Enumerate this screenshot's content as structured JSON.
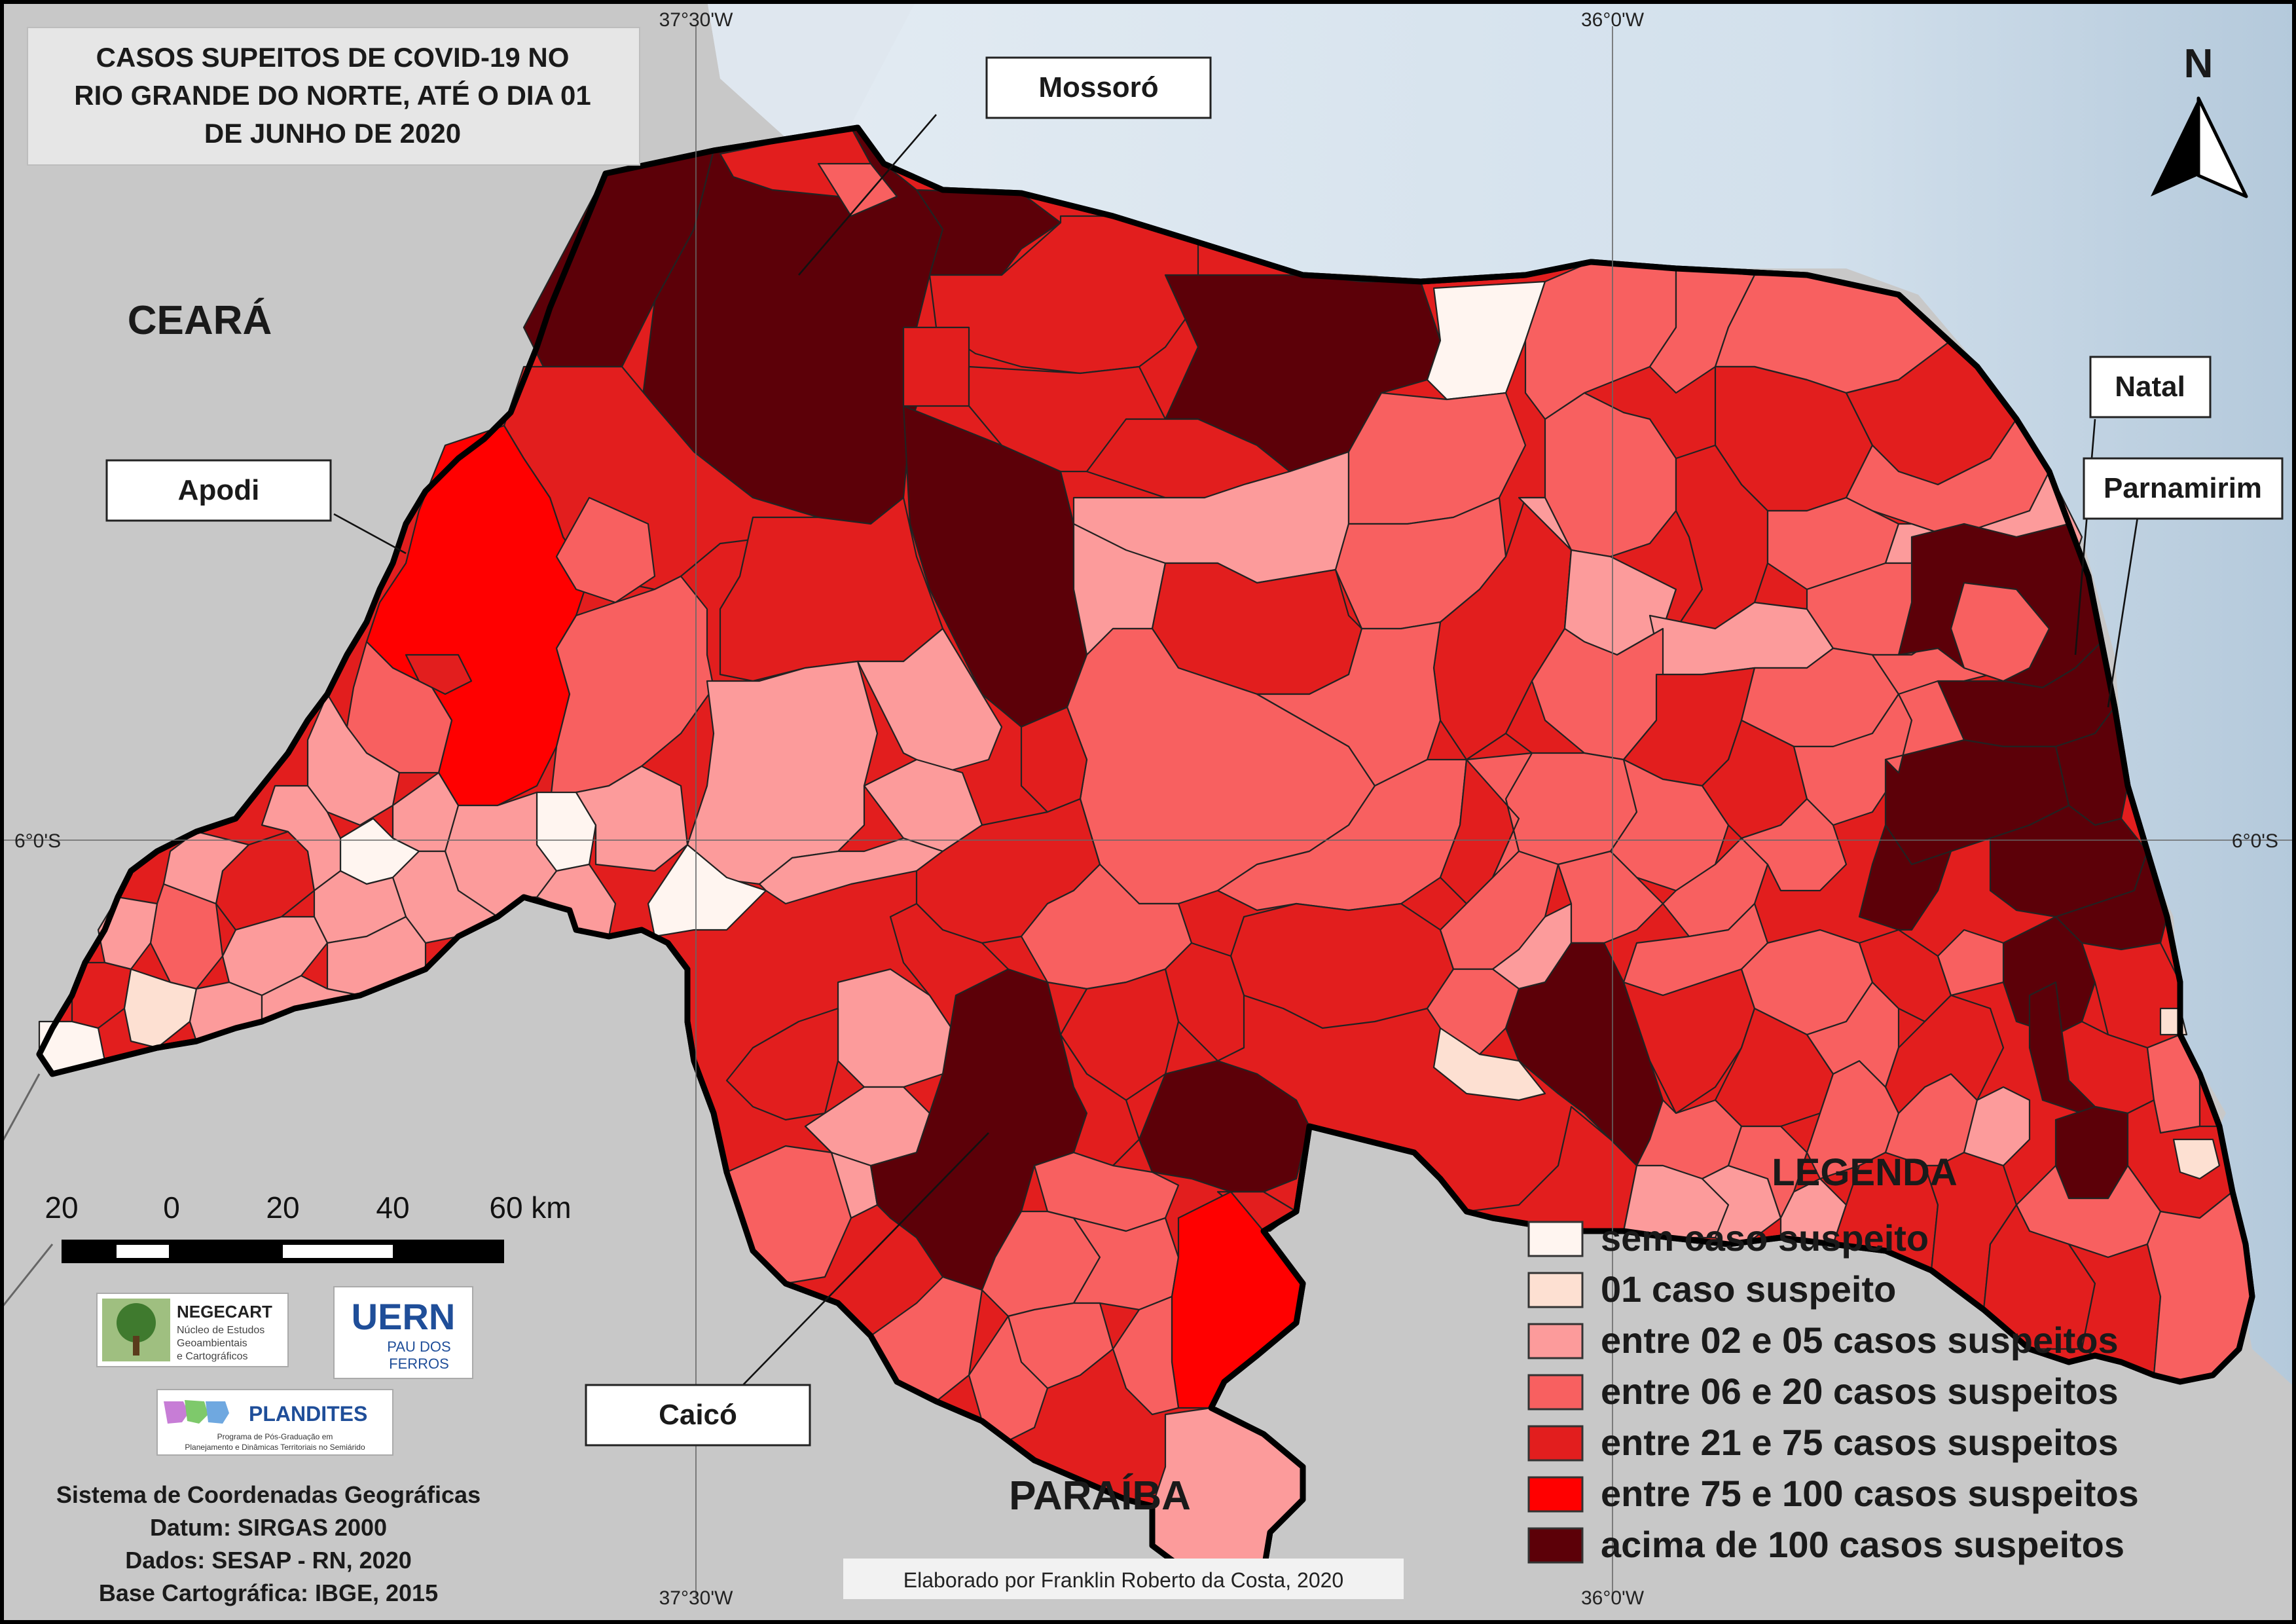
{
  "title_lines": [
    "CASOS SUPEITOS DE COVID-19 NO",
    "RIO GRANDE DO NORTE, ATÉ O DIA 01",
    "DE JUNHO DE 2020"
  ],
  "neighbors": {
    "ceara": "CEARÁ",
    "paraiba": "PARAÍBA"
  },
  "cities": {
    "mossoro": "Mossoró",
    "apodi": "Apodi",
    "natal": "Natal",
    "parnamirim": "Parnamirim",
    "caico": "Caicó"
  },
  "graticule": {
    "top_left": "37°30'W",
    "top_right": "36°0'W",
    "bottom_left": "37°30'W",
    "bottom_right": "36°0'W",
    "left_lat": "6°0'S",
    "right_lat": "6°0'S"
  },
  "north_arrow": "N",
  "scale_bar": {
    "ticks": [
      "20",
      "0",
      "20",
      "40",
      "60 km"
    ]
  },
  "legend": {
    "title": "LEGENDA",
    "classes": [
      {
        "label": "sem caso suspeito",
        "color": "#fff5f0"
      },
      {
        "label": "01 caso suspeito",
        "color": "#fde0d2"
      },
      {
        "label": "entre 02 e 05 casos suspeitos",
        "color": "#fc9b9b"
      },
      {
        "label": "entre 06 e 20 casos suspeitos",
        "color": "#f86060"
      },
      {
        "label": "entre 21 e 75 casos suspeitos",
        "color": "#e21e1e"
      },
      {
        "label": "entre 75 e 100 casos suspeitos",
        "color": "#ff0000"
      },
      {
        "label": "acima de 100 casos suspeitos",
        "color": "#5c0008"
      }
    ]
  },
  "logos": {
    "negecart_name": "NEGECART",
    "negecart_sub1": "Núcleo de Estudos",
    "negecart_sub2": "Geoambientais",
    "negecart_sub3": "e Cartográficos",
    "uern_name": "UERN",
    "uern_sub1": "PAU DOS",
    "uern_sub2": "FERROS",
    "plandites_name": "PLANDITES",
    "plandites_sub1": "Programa de Pós-Graduação em",
    "plandites_sub2": "Planejamento e Dinâmicas Territoriais no Semiárido"
  },
  "metadata_lines": [
    "Sistema de Coordenadas Geográficas",
    "Datum: SIRGAS 2000",
    "Dados: SESAP - RN, 2020",
    "Base Cartográfica: IBGE, 2015"
  ],
  "credit": "Elaborado por Franklin Roberto da Costa, 2020",
  "colors": {
    "land": "#c8c8c8",
    "sea": "#d8e4ee",
    "frame": "#000000"
  }
}
